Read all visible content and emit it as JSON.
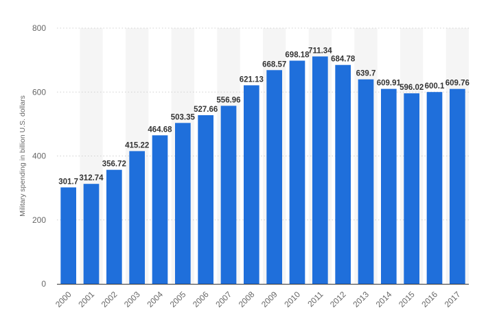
{
  "chart_data": {
    "type": "bar",
    "title": "",
    "xlabel": "",
    "ylabel": "Military spending in billion U.S. dollars",
    "categories": [
      "2000",
      "2001",
      "2002",
      "2003",
      "2004",
      "2005",
      "2006",
      "2007",
      "2008",
      "2009",
      "2010",
      "2011",
      "2012",
      "2013",
      "2014",
      "2015",
      "2016",
      "2017"
    ],
    "values": [
      301.7,
      312.74,
      356.72,
      415.22,
      464.68,
      503.35,
      527.66,
      556.96,
      621.13,
      668.57,
      698.18,
      711.34,
      684.78,
      639.7,
      609.91,
      596.02,
      600.1,
      609.76
    ],
    "value_labels": [
      "301.7",
      "312.74",
      "356.72",
      "415.22",
      "464.68",
      "503.35",
      "527.66",
      "556.96",
      "621.13",
      "668.57",
      "698.18",
      "711.34",
      "684.78",
      "639.7",
      "609.91",
      "596.02",
      "600.1",
      "609.76"
    ],
    "ylim": [
      0,
      800
    ],
    "yticks": [
      0,
      200,
      400,
      600,
      800
    ],
    "ytick_labels": [
      "0",
      "200",
      "400",
      "600",
      "800"
    ],
    "grid": true,
    "legend": "none",
    "colors": {
      "bar": "#1f6fdb",
      "band": "#f5f5f5",
      "grid": "#cfcfcf",
      "axis": "#333333"
    }
  }
}
